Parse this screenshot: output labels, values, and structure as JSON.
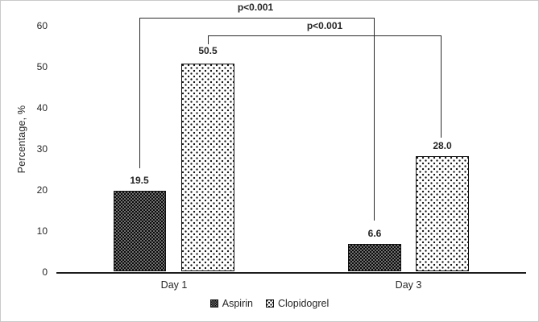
{
  "chart_data": {
    "type": "bar",
    "title": "",
    "xlabel": "",
    "ylabel": "Percentage, %",
    "ylim": [
      0,
      60
    ],
    "grid": false,
    "legend_position": "bottom",
    "y_ticks": [
      "60",
      "50",
      "40",
      "30",
      "20",
      "10",
      "0"
    ],
    "categories": [
      "Day 1",
      "Day 3"
    ],
    "series": [
      {
        "name": "Aspirin",
        "values": [
          19.5,
          6.6
        ]
      },
      {
        "name": "Clopidogrel",
        "values": [
          50.5,
          28.0
        ]
      }
    ],
    "bar_labels": {
      "aspirin_day1": "19.5",
      "clopidogrel_day1": "50.5",
      "aspirin_day3": "6.6",
      "clopidogrel_day3": "28.0"
    },
    "annotations": [
      {
        "label": "p<0.001",
        "connects": [
          "Aspirin Day 1",
          "Aspirin Day 3"
        ]
      },
      {
        "label": "p<0.001",
        "connects": [
          "Clopidogrel Day 1",
          "Clopidogrel Day 3"
        ]
      }
    ],
    "legend": [
      "Aspirin",
      "Clopidogrel"
    ],
    "colors": {
      "bar_border": "#111111",
      "aspirin_pattern": "dark-checkerboard",
      "clopidogrel_pattern": "white-with-black-dots",
      "text": "#262626",
      "axis_line": "#1d1d1d",
      "figure_border": "#c9c9c9"
    }
  }
}
